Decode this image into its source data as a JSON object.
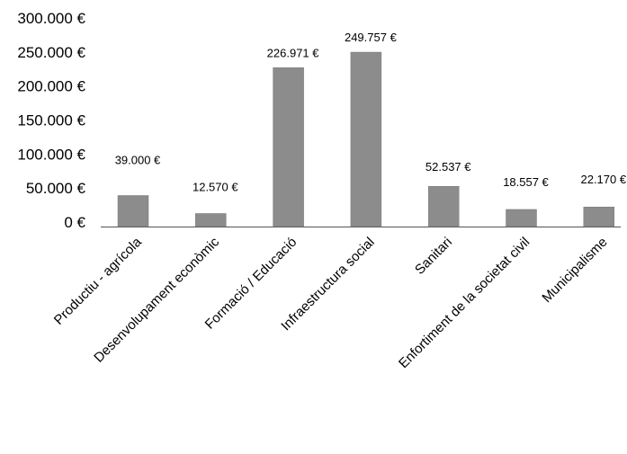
{
  "chart_data": {
    "type": "bar",
    "title": "",
    "xlabel": "",
    "ylabel": "",
    "categories": [
      "Productiu - agrícola",
      "Desenvolupament econòmic",
      "Formació / Educació",
      "Infraestructura social",
      "Sanitari",
      "Enfortiment de la societat civil",
      "Municipalisme"
    ],
    "values": [
      39000,
      12570,
      226971,
      249757,
      52537,
      18557,
      22170
    ],
    "value_labels": [
      "39.000 €",
      "12.570 €",
      "226.971 €",
      "249.757 €",
      "52.537 €",
      "18.557 €",
      "22.170 €"
    ],
    "ylim": [
      0,
      300000
    ],
    "yticks": [
      0,
      50000,
      100000,
      150000,
      200000,
      250000,
      300000
    ],
    "ytick_labels": [
      "0 €",
      "50.000 €",
      "100.000 €",
      "150.000 €",
      "200.000 €",
      "250.000 €",
      "300.000 €"
    ],
    "bar_color": "#8c8c8c",
    "grid": false,
    "legend": "none"
  }
}
